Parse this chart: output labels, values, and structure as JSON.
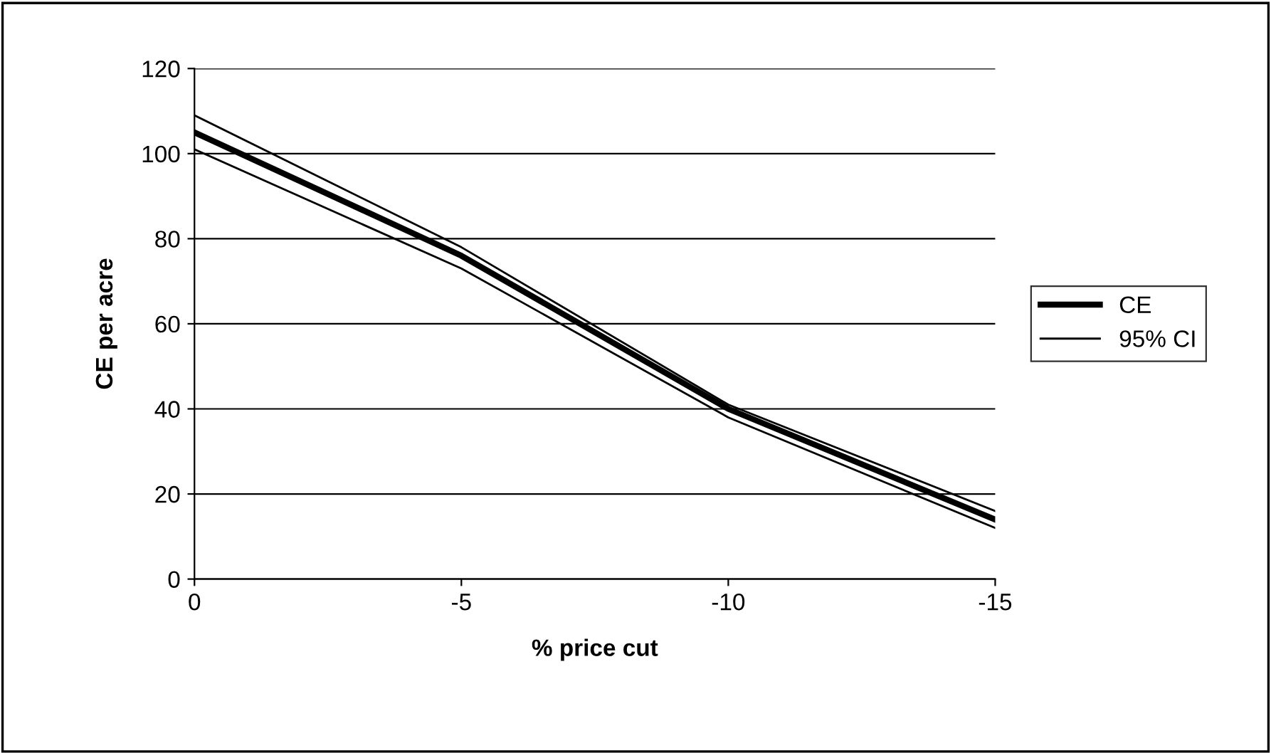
{
  "chart_data": {
    "type": "line",
    "xlabel": "% price cut",
    "ylabel": "CE per acre",
    "categories": [
      "0",
      "-5",
      "-10",
      "-15"
    ],
    "series": [
      {
        "name": "CE",
        "color": "#000000",
        "values": [
          105,
          76,
          40,
          14
        ]
      },
      {
        "name": "95% CI",
        "color": "#000000",
        "values": [
          109,
          78,
          41,
          16
        ]
      },
      {
        "color": "#000000",
        "values": [
          101,
          73,
          38,
          12
        ]
      }
    ],
    "ylim": [
      0,
      120
    ],
    "yticks": [
      0,
      20,
      40,
      60,
      80,
      100,
      120
    ],
    "grid": "y",
    "legend": "right",
    "marker": "none",
    "line_style": "solid"
  }
}
